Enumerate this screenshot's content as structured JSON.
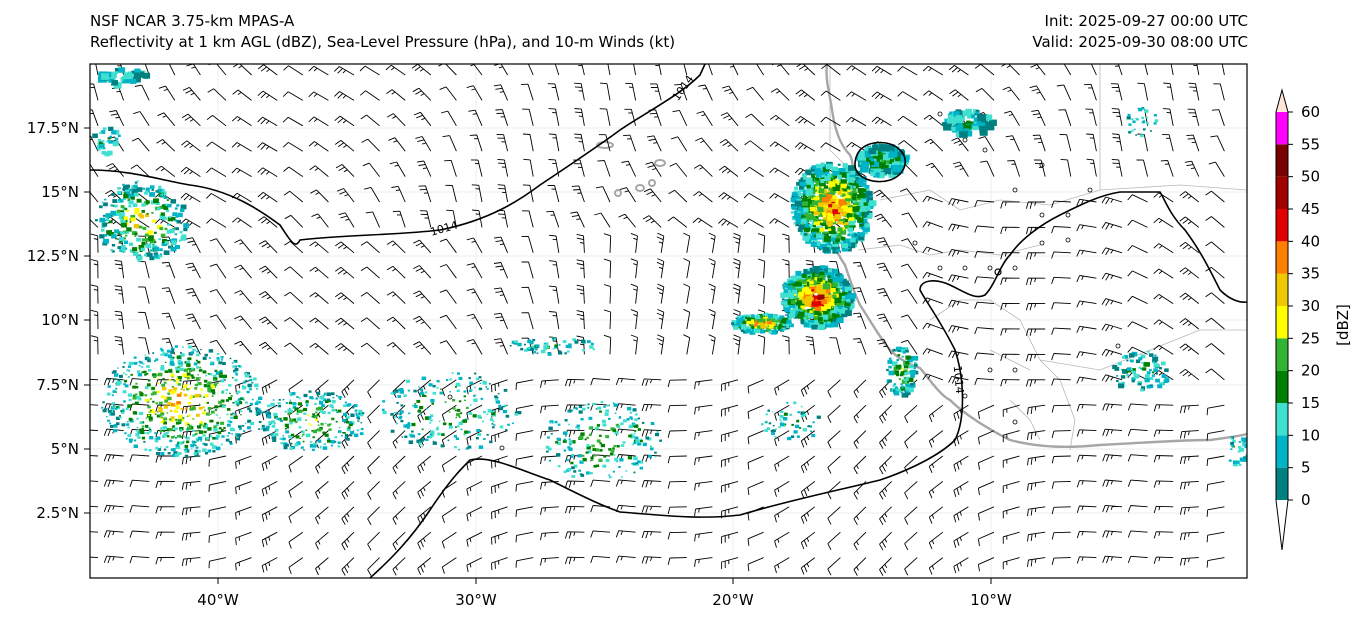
{
  "header": {
    "model": "NSF NCAR 3.75-km MPAS-A",
    "product": "Reflectivity at 1 km AGL (dBZ), Sea-Level Pressure (hPa), and 10-m Winds (kt)",
    "init": "Init: 2025-09-27 00:00 UTC",
    "valid": "Valid: 2025-09-30 08:00 UTC"
  },
  "axes": {
    "lon_ticks": [
      "40°W",
      "30°W",
      "20°W",
      "10°W"
    ],
    "lat_ticks": [
      "17.5°N",
      "15°N",
      "12.5°N",
      "10°N",
      "7.5°N",
      "5°N",
      "2.5°N"
    ]
  },
  "isobar_labels": [
    "1014",
    "1014",
    "1014"
  ],
  "colorbar": {
    "label": "[dBZ]",
    "ticks": [
      "0",
      "5",
      "10",
      "15",
      "20",
      "25",
      "30",
      "35",
      "40",
      "45",
      "50",
      "55",
      "60"
    ],
    "colors": [
      "#008080",
      "#00b4c8",
      "#40e0d0",
      "#008000",
      "#32b432",
      "#ffff00",
      "#f0c800",
      "#ff8000",
      "#e00000",
      "#a00000",
      "#780000",
      "#ff00ff",
      "#ffe4d8"
    ]
  },
  "colors": {
    "isobar": "#000000",
    "coastline": "#a0a0a0",
    "border": "#b8b8b8",
    "barb": "#000000"
  }
}
